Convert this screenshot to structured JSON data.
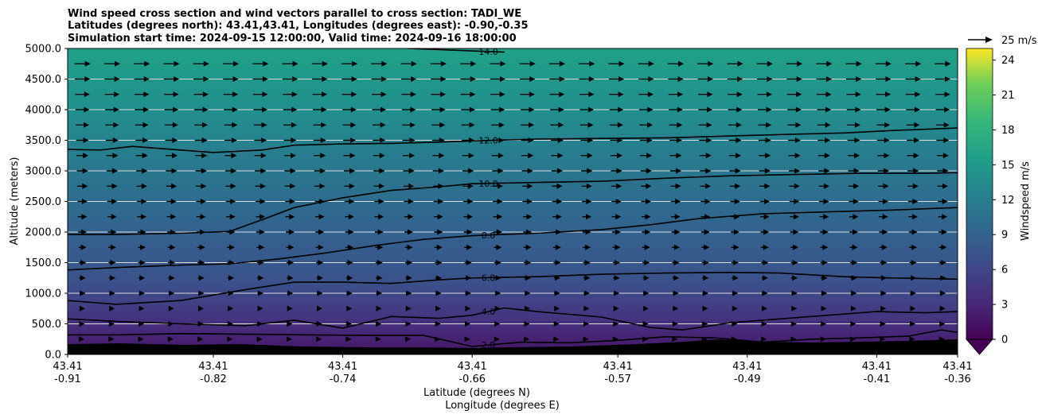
{
  "title_lines": [
    "Wind speed cross section and wind vectors parallel to cross section: TADI_WE",
    "Latitudes (degrees north): 43.41,43.41, Longitudes (degrees east): -0.90,-0.35",
    "Simulation start time: 2024-09-15 12:00:00, Valid time: 2024-09-16 18:00:00"
  ],
  "chart_data": {
    "type": "heatmap",
    "xlabel_lines": [
      "Latitude (degrees N)",
      "Longitude (degrees E)"
    ],
    "ylabel": "Altitude (meters)",
    "ylim": [
      0,
      5000
    ],
    "y_ticks": [
      0,
      500,
      1000,
      1500,
      2000,
      2500,
      3000,
      3500,
      4000,
      4500,
      5000
    ],
    "y_tick_labels": [
      "0.0",
      "500.0",
      "1000.0",
      "1500.0",
      "2000.0",
      "2500.0",
      "3000.0",
      "3500.0",
      "4000.0",
      "4500.0",
      "5000.0"
    ],
    "grid": "horizontal",
    "x_range": [
      -0.91,
      -0.36
    ],
    "x_ticks": [
      {
        "lat": "43.41",
        "lon": "-0.91",
        "x": -0.91
      },
      {
        "lat": "43.41",
        "lon": "-0.82",
        "x": -0.82
      },
      {
        "lat": "43.41",
        "lon": "-0.74",
        "x": -0.74
      },
      {
        "lat": "43.41",
        "lon": "-0.66",
        "x": -0.66
      },
      {
        "lat": "43.41",
        "lon": "-0.57",
        "x": -0.57
      },
      {
        "lat": "43.41",
        "lon": "-0.49",
        "x": -0.49
      },
      {
        "lat": "43.41",
        "lon": "-0.41",
        "x": -0.41
      },
      {
        "lat": "43.41",
        "lon": "-0.36",
        "x": -0.36
      }
    ],
    "colorbar": {
      "label": "Windspeed m/s",
      "vmin": 0,
      "vmax": 25,
      "ticks": [
        0,
        3,
        6,
        9,
        12,
        15,
        18,
        21,
        24
      ],
      "extend": "min"
    },
    "quiver_key": {
      "label": "25 m/s",
      "value": 25
    },
    "contour_levels": [
      {
        "label": "2.0",
        "value": 2,
        "points": [
          [
            -0.91,
            320
          ],
          [
            -0.88,
            320
          ],
          [
            -0.84,
            340
          ],
          [
            -0.8,
            330
          ],
          [
            -0.76,
            320
          ],
          [
            -0.72,
            310
          ],
          [
            -0.69,
            310
          ],
          [
            -0.66,
            130
          ],
          [
            -0.63,
            200
          ],
          [
            -0.6,
            190
          ],
          [
            -0.57,
            230
          ],
          [
            -0.54,
            290
          ],
          [
            -0.51,
            270
          ],
          [
            -0.48,
            200
          ],
          [
            -0.45,
            250
          ],
          [
            -0.42,
            270
          ],
          [
            -0.39,
            300
          ],
          [
            -0.37,
            400
          ],
          [
            -0.36,
            360
          ]
        ]
      },
      {
        "label": "4.0",
        "value": 4,
        "points": [
          [
            -0.91,
            580
          ],
          [
            -0.88,
            540
          ],
          [
            -0.84,
            500
          ],
          [
            -0.8,
            470
          ],
          [
            -0.77,
            560
          ],
          [
            -0.74,
            430
          ],
          [
            -0.71,
            620
          ],
          [
            -0.68,
            590
          ],
          [
            -0.66,
            640
          ],
          [
            -0.64,
            760
          ],
          [
            -0.62,
            700
          ],
          [
            -0.58,
            610
          ],
          [
            -0.55,
            440
          ],
          [
            -0.53,
            400
          ],
          [
            -0.5,
            520
          ],
          [
            -0.47,
            580
          ],
          [
            -0.44,
            640
          ],
          [
            -0.41,
            700
          ],
          [
            -0.38,
            680
          ],
          [
            -0.36,
            700
          ]
        ]
      },
      {
        "label": "6.0",
        "value": 6,
        "points": [
          [
            -0.91,
            880
          ],
          [
            -0.88,
            820
          ],
          [
            -0.84,
            880
          ],
          [
            -0.8,
            1060
          ],
          [
            -0.77,
            1180
          ],
          [
            -0.74,
            1180
          ],
          [
            -0.71,
            1160
          ],
          [
            -0.68,
            1220
          ],
          [
            -0.66,
            1250
          ],
          [
            -0.62,
            1270
          ],
          [
            -0.58,
            1310
          ],
          [
            -0.54,
            1330
          ],
          [
            -0.5,
            1340
          ],
          [
            -0.47,
            1330
          ],
          [
            -0.43,
            1270
          ],
          [
            -0.4,
            1250
          ],
          [
            -0.36,
            1230
          ]
        ]
      },
      {
        "label": "8.0",
        "value": 8,
        "points": [
          [
            -0.91,
            1380
          ],
          [
            -0.88,
            1420
          ],
          [
            -0.84,
            1460
          ],
          [
            -0.81,
            1480
          ],
          [
            -0.78,
            1560
          ],
          [
            -0.75,
            1660
          ],
          [
            -0.72,
            1780
          ],
          [
            -0.69,
            1880
          ],
          [
            -0.66,
            1940
          ],
          [
            -0.62,
            1980
          ],
          [
            -0.58,
            2040
          ],
          [
            -0.55,
            2120
          ],
          [
            -0.52,
            2220
          ],
          [
            -0.48,
            2300
          ],
          [
            -0.44,
            2330
          ],
          [
            -0.4,
            2360
          ],
          [
            -0.36,
            2400
          ]
        ]
      },
      {
        "label": "10.0",
        "value": 10,
        "points": [
          [
            -0.91,
            1960
          ],
          [
            -0.88,
            1960
          ],
          [
            -0.84,
            1980
          ],
          [
            -0.81,
            2010
          ],
          [
            -0.79,
            2200
          ],
          [
            -0.77,
            2400
          ],
          [
            -0.74,
            2560
          ],
          [
            -0.71,
            2680
          ],
          [
            -0.68,
            2740
          ],
          [
            -0.66,
            2790
          ],
          [
            -0.62,
            2810
          ],
          [
            -0.58,
            2830
          ],
          [
            -0.54,
            2880
          ],
          [
            -0.5,
            2920
          ],
          [
            -0.46,
            2940
          ],
          [
            -0.42,
            2960
          ],
          [
            -0.38,
            2960
          ],
          [
            -0.36,
            2970
          ]
        ]
      },
      {
        "label": "12.0",
        "value": 12,
        "points": [
          [
            -0.91,
            3350
          ],
          [
            -0.89,
            3340
          ],
          [
            -0.87,
            3400
          ],
          [
            -0.85,
            3360
          ],
          [
            -0.82,
            3300
          ],
          [
            -0.79,
            3340
          ],
          [
            -0.77,
            3420
          ],
          [
            -0.74,
            3440
          ],
          [
            -0.71,
            3450
          ],
          [
            -0.68,
            3470
          ],
          [
            -0.66,
            3490
          ],
          [
            -0.62,
            3520
          ],
          [
            -0.58,
            3530
          ],
          [
            -0.54,
            3540
          ],
          [
            -0.5,
            3570
          ],
          [
            -0.46,
            3600
          ],
          [
            -0.43,
            3620
          ],
          [
            -0.4,
            3660
          ],
          [
            -0.36,
            3700
          ]
        ]
      },
      {
        "label": "14.0",
        "value": 14,
        "points": [
          [
            -0.7,
            5000
          ],
          [
            -0.68,
            4980
          ],
          [
            -0.66,
            4960
          ],
          [
            -0.64,
            4940
          ]
        ]
      }
    ],
    "wind_vectors": "uniform eastward (left-to-right) arrows parallel to cross section, stronger aloft"
  }
}
